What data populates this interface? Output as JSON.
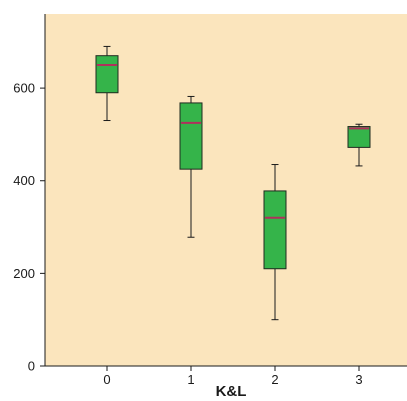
{
  "chart_data": {
    "type": "box",
    "title": "",
    "xlabel": "K&L",
    "ylabel": "",
    "categories": [
      "0",
      "1",
      "2",
      "3"
    ],
    "ylim": [
      0,
      760
    ],
    "y_ticks": [
      0,
      200,
      400,
      600
    ],
    "y_tick_labels": [
      "0",
      "200",
      "400",
      "600"
    ],
    "grid": false,
    "legend": "none",
    "boxes": [
      {
        "category": "0",
        "min": 530,
        "q1": 590,
        "median": 650,
        "q3": 670,
        "max": 690
      },
      {
        "category": "1",
        "min": 278,
        "q1": 425,
        "median": 525,
        "q3": 568,
        "max": 582
      },
      {
        "category": "2",
        "min": 100,
        "q1": 210,
        "median": 320,
        "q3": 378,
        "max": 435
      },
      {
        "category": "3",
        "min": 432,
        "q1": 472,
        "median": 513,
        "q3": 517,
        "max": 522
      }
    ],
    "colors": {
      "plot_background": "#fbe5bd",
      "box_fill": "#35b44a",
      "box_stroke": "#1f2a1f",
      "median": "#b0305c",
      "whisker": "#1a1a1a",
      "axis": "#1a1a1a"
    }
  }
}
